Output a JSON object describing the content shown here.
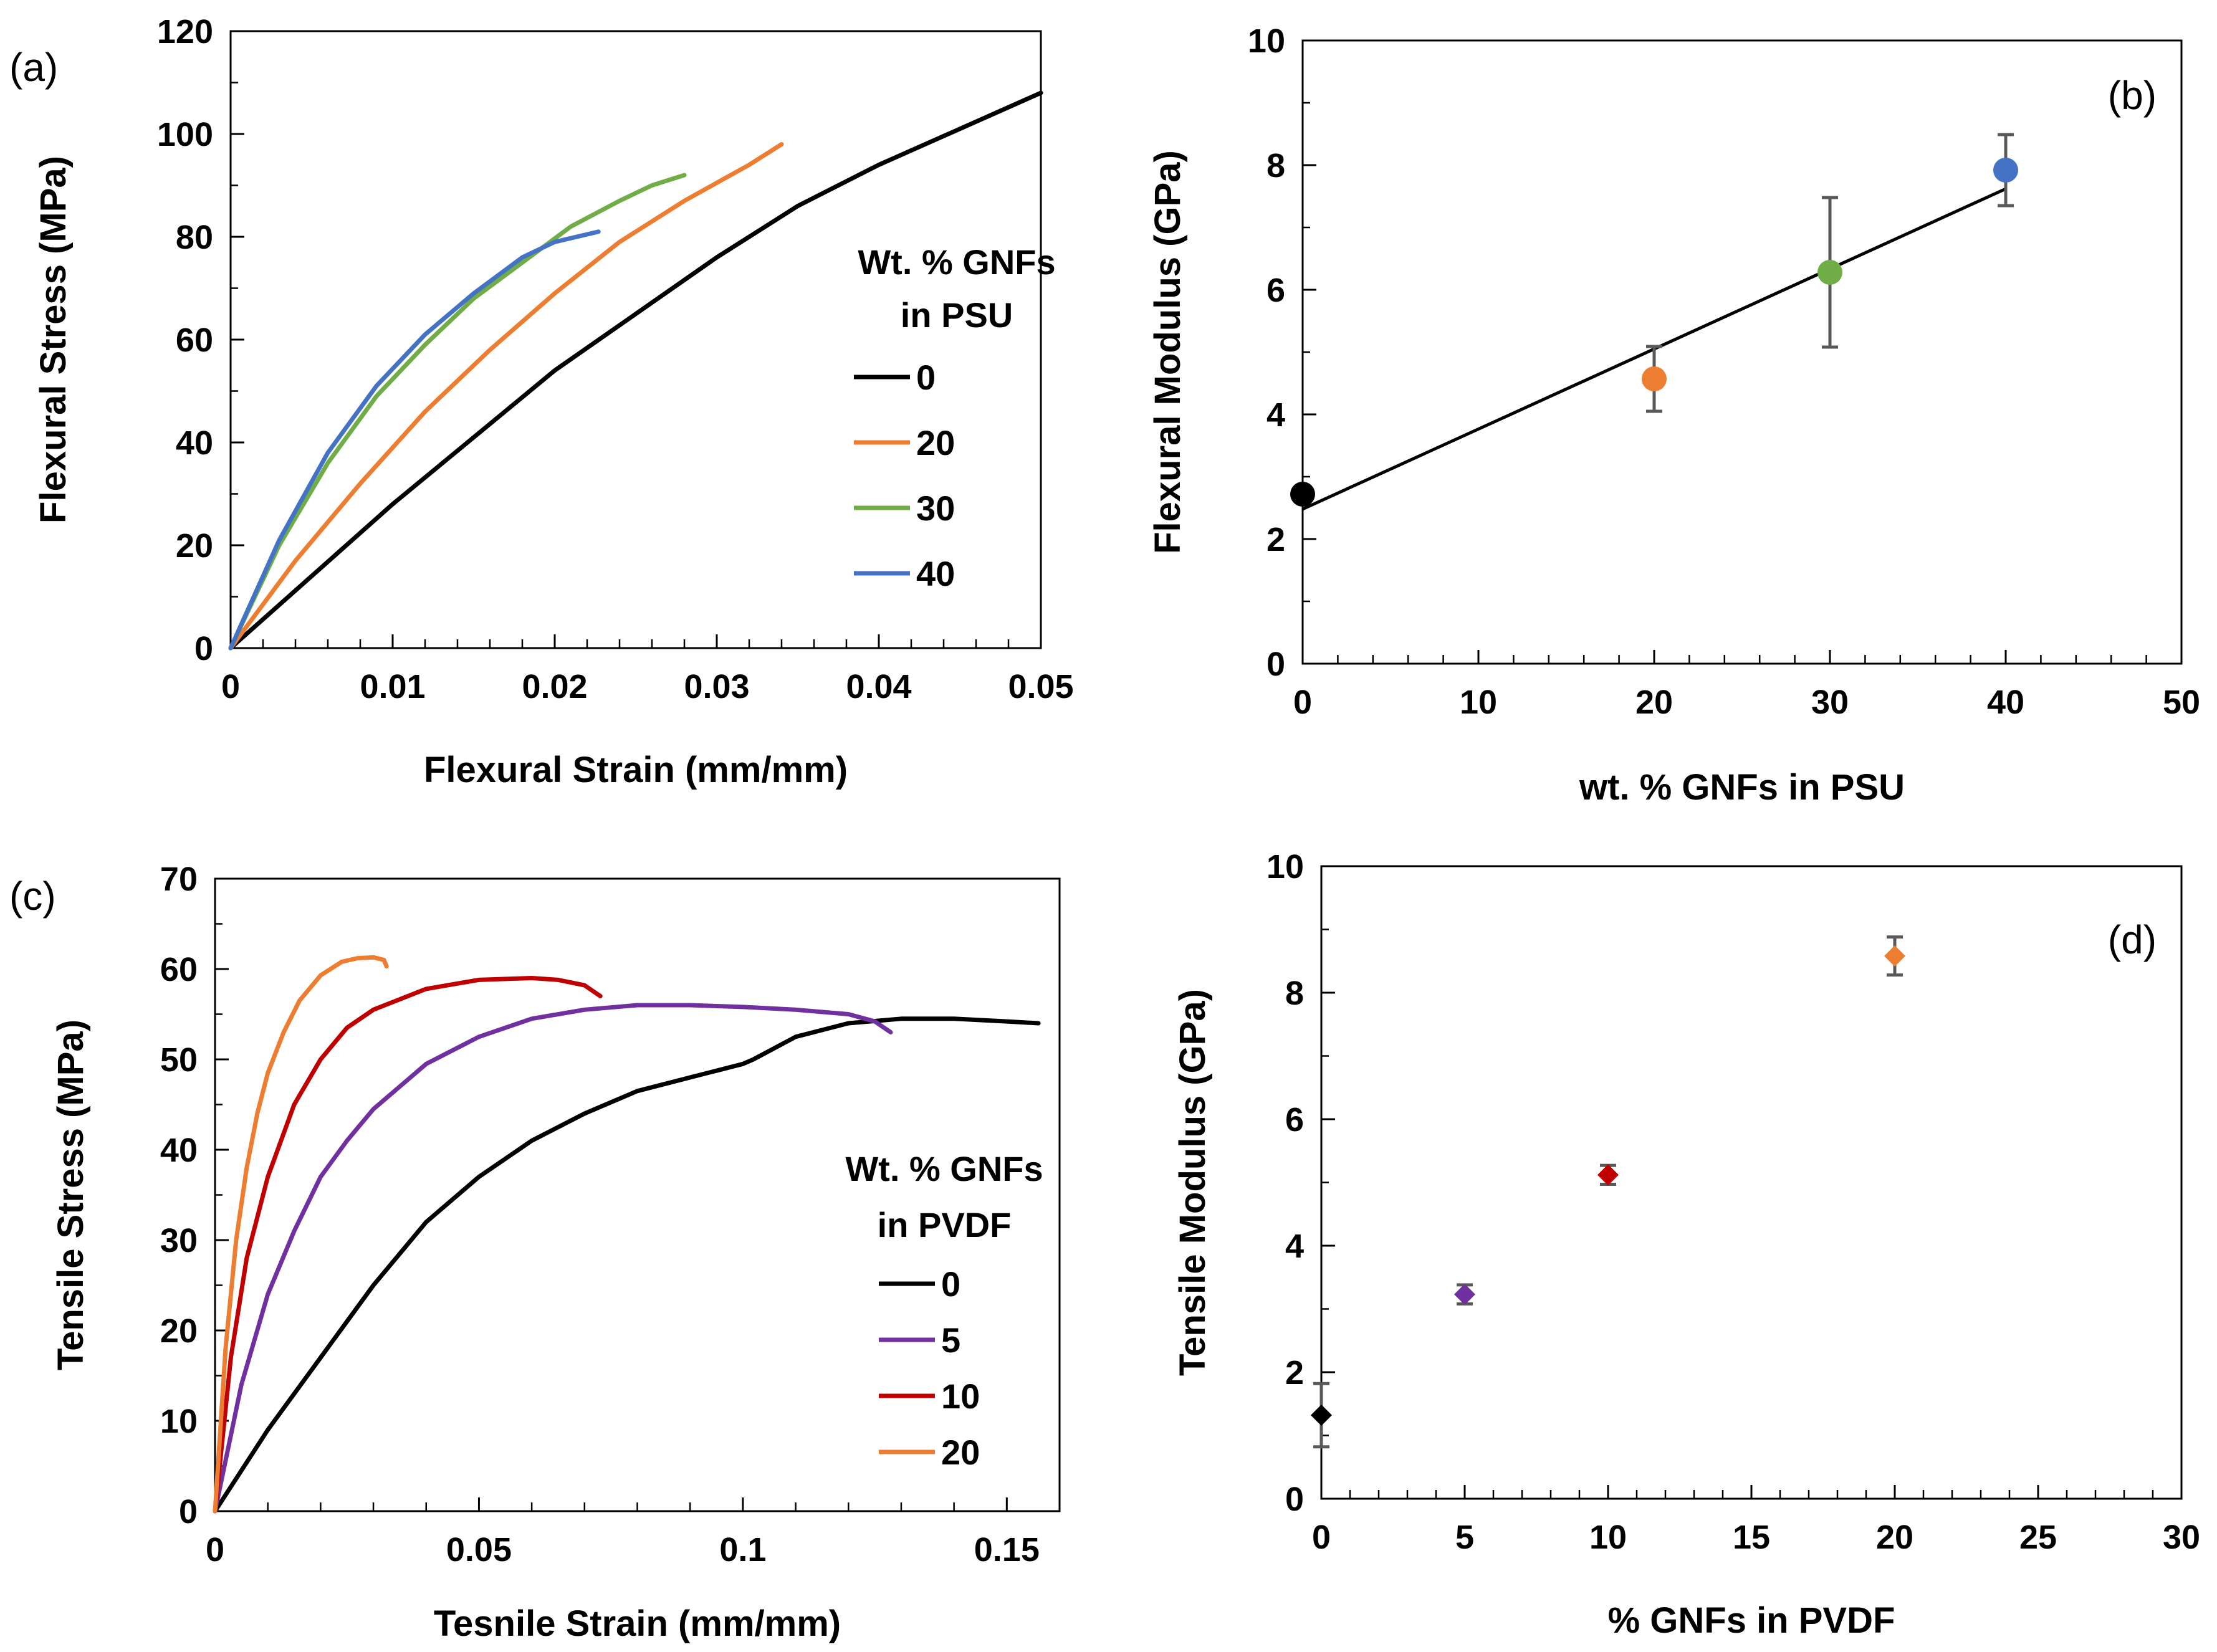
{
  "chart_data": [
    {
      "type": "line",
      "panel_label": "(a)",
      "xlabel": "Flexural Strain (mm/mm)",
      "ylabel": "Flexural Stress  (MPa)",
      "xlim": [
        0,
        0.05
      ],
      "ylim": [
        0,
        120
      ],
      "xticks": [
        0,
        0.01,
        0.02,
        0.03,
        0.04,
        0.05
      ],
      "xtick_labels": [
        "0",
        "0.01",
        "0.02",
        "0.03",
        "0.04",
        "0.05"
      ],
      "yticks": [
        0,
        20,
        40,
        60,
        80,
        100,
        120
      ],
      "ytick_labels": [
        "0",
        "20",
        "40",
        "60",
        "80",
        "100",
        "120"
      ],
      "grid": false,
      "legend_title": [
        "Wt. % GNFs",
        "in PSU"
      ],
      "legend_position": "right",
      "series": [
        {
          "name": "0",
          "color": "#000000",
          "x": [
            0,
            0.005,
            0.01,
            0.015,
            0.02,
            0.025,
            0.03,
            0.035,
            0.04,
            0.045,
            0.05
          ],
          "y": [
            0,
            14,
            28,
            41,
            54,
            65,
            76,
            86,
            94,
            101,
            108
          ]
        },
        {
          "name": "20",
          "color": "#ED7D31",
          "x": [
            0,
            0.004,
            0.008,
            0.012,
            0.016,
            0.02,
            0.024,
            0.028,
            0.032,
            0.034
          ],
          "y": [
            0,
            17,
            32,
            46,
            58,
            69,
            79,
            87,
            94,
            98
          ]
        },
        {
          "name": "30",
          "color": "#70AD47",
          "x": [
            0,
            0.003,
            0.006,
            0.009,
            0.012,
            0.015,
            0.018,
            0.021,
            0.024,
            0.026,
            0.028
          ],
          "y": [
            0,
            20,
            36,
            49,
            59,
            68,
            75,
            82,
            87,
            90,
            92
          ]
        },
        {
          "name": "40",
          "color": "#4472C4",
          "x": [
            0,
            0.003,
            0.006,
            0.009,
            0.012,
            0.015,
            0.018,
            0.02,
            0.0227
          ],
          "y": [
            0,
            21,
            38,
            51,
            61,
            69,
            76,
            79,
            81
          ]
        }
      ]
    },
    {
      "type": "scatter",
      "panel_label": "(b)",
      "xlabel": "wt. % GNFs in PSU",
      "ylabel": "Flexural Modulus  (GPa)",
      "xlim": [
        0,
        50
      ],
      "ylim": [
        0,
        10
      ],
      "xticks": [
        0,
        10,
        20,
        30,
        40,
        50
      ],
      "xtick_labels": [
        "0",
        "10",
        "20",
        "30",
        "40",
        "50"
      ],
      "yticks": [
        0,
        2,
        4,
        6,
        8,
        10
      ],
      "ytick_labels": [
        "0",
        "2",
        "4",
        "6",
        "8",
        "10"
      ],
      "grid": false,
      "points": [
        {
          "x": 0,
          "y": 2.72,
          "err": 0,
          "color": "#000000"
        },
        {
          "x": 20,
          "y": 4.57,
          "err": 0.52,
          "color": "#ED7D31"
        },
        {
          "x": 30,
          "y": 6.28,
          "err": 1.2,
          "color": "#70AD47"
        },
        {
          "x": 40,
          "y": 7.92,
          "err": 0.57,
          "color": "#4472C4"
        }
      ],
      "trendline": {
        "x": [
          0,
          40
        ],
        "y": [
          2.48,
          7.62
        ],
        "color": "#000000"
      }
    },
    {
      "type": "line",
      "panel_label": "(c)",
      "xlabel": "Tesnile Strain (mm/mm)",
      "ylabel": "Tensile Stress  (MPa)",
      "xlim": [
        0,
        0.16
      ],
      "ylim": [
        0,
        70
      ],
      "xticks": [
        0,
        0.05,
        0.1,
        0.15
      ],
      "xtick_labels": [
        "0",
        "0.05",
        "0.1",
        "0.15"
      ],
      "yticks": [
        0,
        10,
        20,
        30,
        40,
        50,
        60,
        70
      ],
      "ytick_labels": [
        "0",
        "10",
        "20",
        "30",
        "40",
        "50",
        "60",
        "70"
      ],
      "grid": false,
      "legend_title": [
        "Wt. % GNFs",
        "in PVDF"
      ],
      "legend_position": "right",
      "series": [
        {
          "name": "0",
          "color": "#000000",
          "x": [
            0,
            0.01,
            0.02,
            0.03,
            0.04,
            0.05,
            0.06,
            0.07,
            0.08,
            0.09,
            0.1,
            0.102,
            0.11,
            0.12,
            0.13,
            0.14,
            0.15,
            0.156
          ],
          "y": [
            0,
            9,
            17,
            25,
            32,
            37,
            41,
            44,
            46.5,
            48,
            49.5,
            50,
            52.5,
            54,
            54.5,
            54.5,
            54.2,
            54
          ]
        },
        {
          "name": "5",
          "color": "#7030A0",
          "x": [
            0,
            0.005,
            0.01,
            0.015,
            0.02,
            0.025,
            0.03,
            0.04,
            0.05,
            0.06,
            0.07,
            0.08,
            0.09,
            0.1,
            0.11,
            0.12,
            0.125,
            0.128
          ],
          "y": [
            0,
            14,
            24,
            31,
            37,
            41,
            44.5,
            49.5,
            52.5,
            54.5,
            55.5,
            56,
            56,
            55.8,
            55.5,
            55,
            54.2,
            53
          ]
        },
        {
          "name": "10",
          "color": "#C00000",
          "x": [
            0,
            0.003,
            0.006,
            0.01,
            0.015,
            0.02,
            0.025,
            0.03,
            0.04,
            0.05,
            0.06,
            0.065,
            0.07,
            0.073
          ],
          "y": [
            0,
            17,
            28,
            37,
            45,
            50,
            53.5,
            55.5,
            57.8,
            58.8,
            59,
            58.8,
            58.2,
            57
          ]
        },
        {
          "name": "20",
          "color": "#ED7D31",
          "x": [
            0,
            0.002,
            0.004,
            0.006,
            0.008,
            0.01,
            0.013,
            0.016,
            0.02,
            0.024,
            0.027,
            0.03,
            0.032,
            0.0325
          ],
          "y": [
            0,
            18,
            30,
            38,
            44,
            48.5,
            53,
            56.5,
            59.3,
            60.8,
            61.2,
            61.3,
            61,
            60.3
          ]
        }
      ]
    },
    {
      "type": "scatter",
      "panel_label": "(d)",
      "xlabel": "% GNFs in PVDF",
      "ylabel": "Tensile Modulus  (GPa)",
      "xlim": [
        0,
        30
      ],
      "ylim": [
        0,
        10
      ],
      "xticks": [
        0,
        5,
        10,
        15,
        20,
        25,
        30
      ],
      "xtick_labels": [
        "0",
        "5",
        "10",
        "15",
        "20",
        "25",
        "30"
      ],
      "yticks": [
        0,
        2,
        4,
        6,
        8,
        10
      ],
      "ytick_labels": [
        "0",
        "2",
        "4",
        "6",
        "8",
        "10"
      ],
      "grid": false,
      "points": [
        {
          "x": 0,
          "y": 1.32,
          "err": 0.5,
          "color": "#000000"
        },
        {
          "x": 5,
          "y": 3.23,
          "err": 0.15,
          "color": "#7030A0"
        },
        {
          "x": 10,
          "y": 5.12,
          "err": 0.15,
          "color": "#C00000"
        },
        {
          "x": 20,
          "y": 8.58,
          "err": 0.3,
          "color": "#ED7D31"
        }
      ]
    }
  ]
}
